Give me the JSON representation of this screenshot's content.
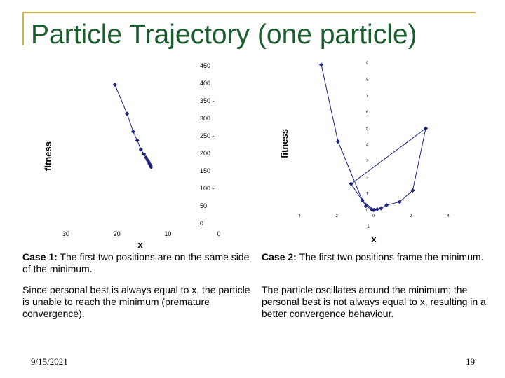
{
  "title": "Particle Trajectory (one particle)",
  "chart_data": [
    {
      "type": "line",
      "ylabel": "fitness",
      "xlabel": "x",
      "x_reversed": true,
      "xlim": [
        0,
        30
      ],
      "ylim": [
        0,
        450
      ],
      "x_ticks": [
        "30",
        "20",
        "10",
        "0"
      ],
      "x_tick_values": [
        30,
        20,
        10,
        0
      ],
      "y_ticks": [
        "450",
        "400",
        "350 -",
        "300",
        "250 -",
        "200",
        "150",
        "100 -",
        "50",
        "0"
      ],
      "y_tick_values": [
        450,
        400,
        350,
        300,
        250,
        200,
        150,
        100,
        50,
        0
      ],
      "series": [
        {
          "x": [
            20.4,
            18.0,
            16.8,
            16.0,
            15.3,
            14.7,
            14.3,
            14.0,
            13.8,
            13.6,
            13.4,
            13.3
          ],
          "y": [
            396,
            313,
            262,
            237,
            211,
            198,
            188,
            181,
            176,
            170,
            165,
            161
          ]
        }
      ]
    },
    {
      "type": "line",
      "ylabel": "fitness",
      "xlabel": "x",
      "xlim": [
        -4,
        4
      ],
      "ylim": [
        0,
        9
      ],
      "x_ticks": [
        "-4",
        "-2",
        "0",
        "2",
        "4"
      ],
      "x_tick_values": [
        -4,
        -2,
        0,
        2,
        4
      ],
      "y_ticks": [
        "9",
        "8",
        "7",
        "6",
        "5",
        "4",
        "3",
        "2",
        "1",
        "0"
      ],
      "y_tick_values": [
        9,
        8,
        7,
        6,
        5,
        4,
        3,
        2,
        1,
        0
      ],
      "extra_ticks": [
        "1"
      ],
      "series": [
        {
          "x": [
            -2.8,
            -1.9,
            -0.6,
            0.0,
            0.2,
            0.4,
            0.7,
            1.4,
            2.1,
            2.8,
            -1.2,
            -0.4,
            -0.1,
            0.05
          ],
          "y": [
            8.9,
            4.2,
            0.6,
            0.0,
            0.05,
            0.1,
            0.3,
            0.5,
            1.2,
            5.0,
            1.6,
            0.25,
            0.04,
            0.01
          ]
        }
      ],
      "trajectory_order_note_hidden": ""
    }
  ],
  "captions": {
    "case1_label": "Case 1:",
    "case1_text": " The first two positions are on the same side of the minimum.",
    "case1_detail": "Since personal best is always equal to x, the particle is unable to reach the minimum (premature convergence).",
    "case2_label": "Case 2:",
    "case2_text": " The first two positions frame the minimum.",
    "case2_detail": "The particle oscillates around the minimum; the personal best is not always equal to x, resulting in a better convergence behaviour."
  },
  "footer": {
    "date": "9/15/2021",
    "page": "19"
  },
  "colors": {
    "title": "#1b5e2e",
    "frame": "#c8b44a",
    "marker": "#1a237e"
  }
}
